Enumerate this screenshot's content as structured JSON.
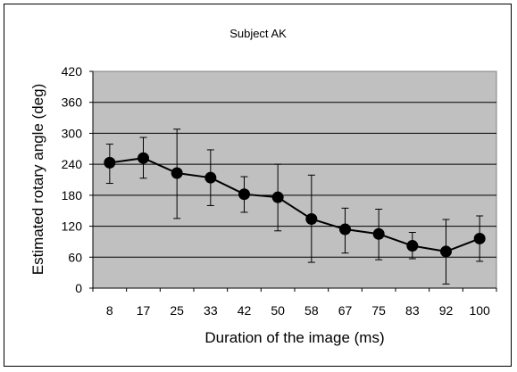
{
  "chart_data": {
    "type": "line",
    "title": "Subject AK",
    "xlabel": "Duration of the image (ms)",
    "ylabel": "Estimated rotary angle (deg)",
    "categories": [
      "8",
      "17",
      "25",
      "33",
      "42",
      "50",
      "58",
      "67",
      "75",
      "83",
      "92",
      "100"
    ],
    "ylim": [
      0,
      420
    ],
    "yticks": [
      0,
      60,
      120,
      180,
      240,
      300,
      360,
      420
    ],
    "grid": true,
    "legend": "none",
    "series": [
      {
        "values": [
          243,
          252,
          223,
          214,
          182,
          176,
          134,
          114,
          105,
          82,
          71,
          96
        ],
        "error_upper": [
          279,
          292,
          308,
          268,
          216,
          240,
          219,
          155,
          153,
          108,
          133,
          140
        ],
        "error_lower": [
          203,
          213,
          135,
          160,
          147,
          111,
          50,
          68,
          55,
          57,
          8,
          52
        ]
      }
    ],
    "colors": {
      "plot_background": "#c0c0c0",
      "line": "#000000",
      "marker": "#000000",
      "gridline": "#000000"
    }
  }
}
